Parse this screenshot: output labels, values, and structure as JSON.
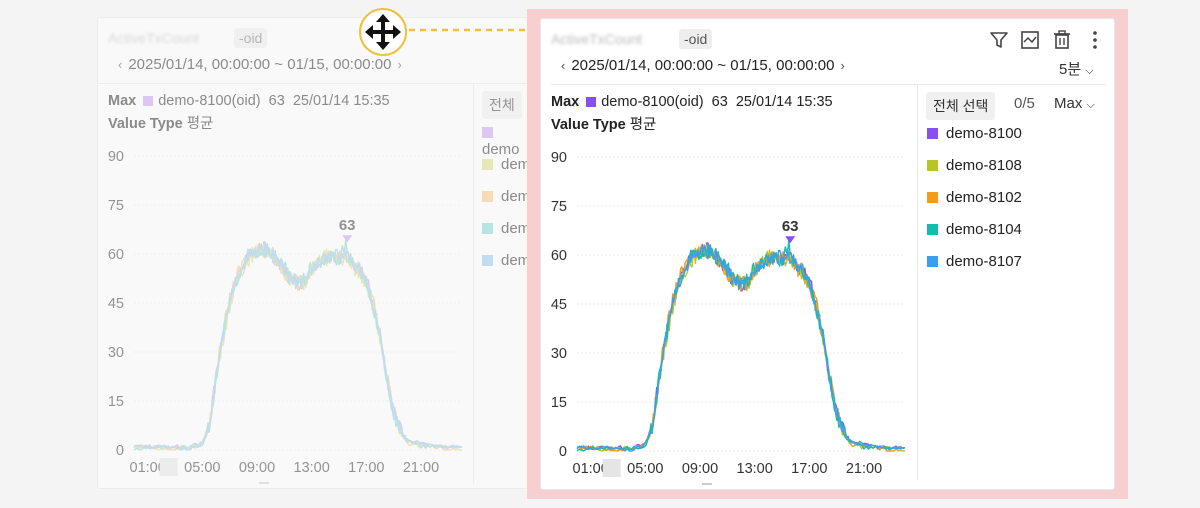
{
  "move_icon": "move-arrows-icon",
  "colors": {
    "highlight": "#f7cfd0",
    "badge_border": "#f1bf3d",
    "arrow": "#f1bf3d"
  },
  "ghost": {
    "title_suffix": "-oid",
    "date_range": "2025/01/14, 00:00:00 ~ 01/15, 00:00:00",
    "info": {
      "max_label": "Max",
      "series": "demo-8100(oid)",
      "value": "63",
      "time": "25/01/14 15:35",
      "value_type_label": "Value Type",
      "value_type": "평균"
    },
    "legend_button": "전체",
    "legend": [
      {
        "label": "demo",
        "color": "#c49bf1"
      },
      {
        "label": "dem",
        "color": "#d9dc7a"
      },
      {
        "label": "dem",
        "color": "#f7c37a"
      },
      {
        "label": "dem",
        "color": "#7ad8d0"
      },
      {
        "label": "dem",
        "color": "#8fc6f0"
      }
    ]
  },
  "main": {
    "title_suffix": "-oid",
    "date_range": "2025/01/14, 00:00:00 ~ 01/15, 00:00:00",
    "interval": "5분",
    "info": {
      "max_label": "Max",
      "series": "demo-8100(oid)",
      "value": "63",
      "time": "25/01/14 15:35",
      "value_type_label": "Value Type",
      "value_type": "평균"
    },
    "legend_select_all": "전체 선택",
    "legend_count": "0/5",
    "legend_sort": "Max",
    "legend": [
      {
        "label": "demo-8100",
        "color": "#8a4ff0"
      },
      {
        "label": "demo-8108",
        "color": "#b8c42a"
      },
      {
        "label": "demo-8102",
        "color": "#f59a1a"
      },
      {
        "label": "demo-8104",
        "color": "#12bdb0"
      },
      {
        "label": "demo-8107",
        "color": "#3aa0ee"
      }
    ],
    "toolbar": [
      "filter-icon",
      "chart-image-icon",
      "trash-icon",
      "more-vertical-icon"
    ]
  },
  "chart_data": {
    "type": "line",
    "y_ticks": [
      "90",
      "75",
      "60",
      "45",
      "30",
      "15",
      "0"
    ],
    "x_ticks": [
      "01:00",
      "05:00",
      "09:00",
      "13:00",
      "17:00",
      "21:00"
    ],
    "ylim": [
      0,
      90
    ],
    "max_marker": {
      "label": "63",
      "x_hour": 15.6,
      "y": 63
    },
    "x_hours": [
      0,
      1,
      2,
      3,
      4,
      5,
      5.5,
      6,
      6.5,
      7,
      7.5,
      8,
      8.5,
      9,
      9.5,
      10,
      10.5,
      11,
      11.5,
      12,
      12.5,
      13,
      13.5,
      14,
      14.5,
      15,
      15.5,
      16,
      16.5,
      17,
      17.5,
      18,
      18.5,
      19,
      19.5,
      20,
      21,
      22,
      23,
      24
    ],
    "series": [
      {
        "name": "demo-8100",
        "values": [
          1,
          1,
          1,
          1,
          1,
          2,
          8,
          22,
          35,
          45,
          52,
          57,
          60,
          61,
          62,
          60,
          58,
          55,
          52,
          51,
          52,
          56,
          58,
          59,
          60,
          59,
          60,
          57,
          55,
          52,
          45,
          35,
          22,
          12,
          6,
          3,
          2,
          1,
          1,
          1
        ]
      },
      {
        "name": "demo-8108",
        "values": [
          1,
          1,
          0,
          1,
          1,
          1,
          7,
          21,
          34,
          44,
          51,
          56,
          59,
          61,
          61,
          61,
          57,
          55,
          52,
          52,
          51,
          55,
          57,
          60,
          59,
          58,
          59,
          56,
          54,
          51,
          44,
          34,
          21,
          11,
          5,
          3,
          1,
          1,
          1,
          0
        ]
      },
      {
        "name": "demo-8102",
        "values": [
          1,
          1,
          1,
          0,
          1,
          2,
          8,
          23,
          36,
          46,
          53,
          57,
          60,
          62,
          61,
          60,
          58,
          54,
          53,
          51,
          52,
          55,
          58,
          58,
          60,
          60,
          59,
          57,
          55,
          51,
          45,
          35,
          23,
          12,
          6,
          2,
          2,
          1,
          0,
          1
        ]
      },
      {
        "name": "demo-8104",
        "values": [
          0,
          1,
          1,
          1,
          1,
          1,
          7,
          22,
          35,
          45,
          52,
          56,
          61,
          60,
          62,
          60,
          57,
          56,
          52,
          52,
          52,
          56,
          57,
          59,
          59,
          58,
          63,
          56,
          54,
          52,
          44,
          34,
          22,
          11,
          5,
          3,
          1,
          1,
          1,
          1
        ]
      },
      {
        "name": "demo-8107",
        "values": [
          1,
          1,
          1,
          1,
          0,
          2,
          8,
          21,
          35,
          45,
          52,
          57,
          59,
          61,
          61,
          61,
          58,
          55,
          52,
          51,
          51,
          55,
          58,
          59,
          60,
          59,
          60,
          57,
          55,
          51,
          45,
          35,
          22,
          12,
          6,
          3,
          2,
          1,
          1,
          1
        ]
      }
    ]
  }
}
